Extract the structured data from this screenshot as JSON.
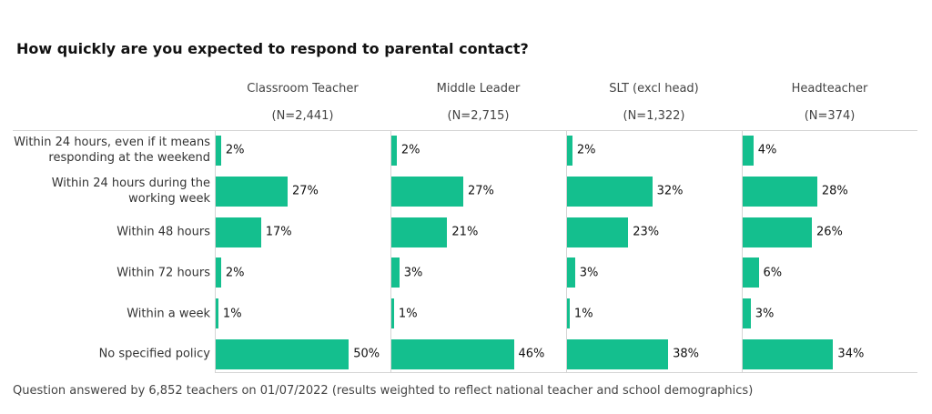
{
  "chart_data": {
    "type": "bar",
    "orientation": "horizontal",
    "title": "How quickly are you expected to respond to parental contact?",
    "categories": [
      "Within 24 hours, even if it means\nresponding at the weekend",
      "Within 24 hours during the\nworking week",
      "Within 48 hours",
      "Within 72 hours",
      "Within a week",
      "No specified policy"
    ],
    "xlim": [
      0,
      66
    ],
    "series": [
      {
        "name": "Classroom Teacher",
        "sample": "(N=2,441)",
        "color": "#14bf8e",
        "values": [
          2,
          27,
          17,
          2,
          1,
          50
        ],
        "value_labels": [
          "2%",
          "27%",
          "17%",
          "2%",
          "1%",
          "50%"
        ]
      },
      {
        "name": "Middle Leader",
        "sample": "(N=2,715)",
        "color": "#14bf8e",
        "values": [
          2,
          27,
          21,
          3,
          1,
          46
        ],
        "value_labels": [
          "2%",
          "27%",
          "21%",
          "3%",
          "1%",
          "46%"
        ]
      },
      {
        "name": "SLT (excl head)",
        "sample": "(N=1,322)",
        "color": "#14bf8e",
        "values": [
          2,
          32,
          23,
          3,
          1,
          38
        ],
        "value_labels": [
          "2%",
          "32%",
          "23%",
          "3%",
          "1%",
          "38%"
        ]
      },
      {
        "name": "Headteacher",
        "sample": "(N=374)",
        "color": "#14bf8e",
        "values": [
          4,
          28,
          26,
          6,
          3,
          34
        ],
        "value_labels": [
          "4%",
          "28%",
          "26%",
          "6%",
          "3%",
          "34%"
        ]
      }
    ],
    "note": "Question answered by 6,852 teachers on 01/07/2022 (results weighted to reflect national teacher and school demographics)"
  }
}
